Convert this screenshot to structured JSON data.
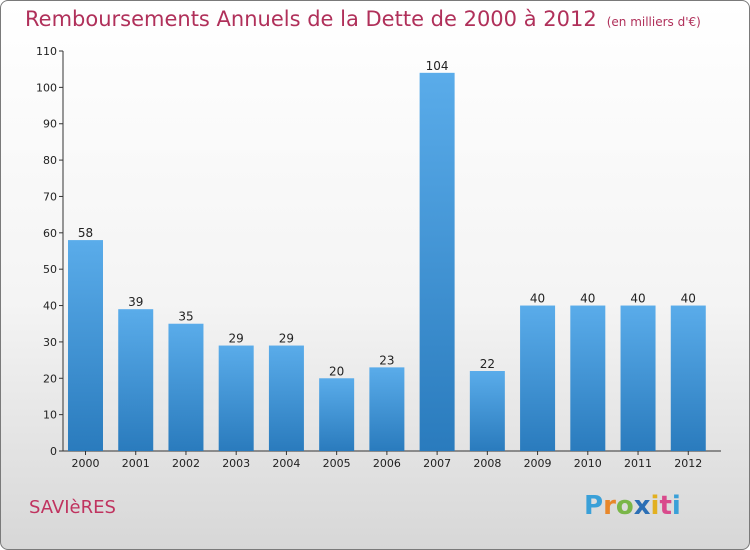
{
  "title": "Remboursements Annuels de la Dette de 2000 à 2012",
  "subtitle": "(en milliers d'€)",
  "location": "SAVIèRES",
  "brand": {
    "letters": [
      "P",
      "r",
      "o",
      "x",
      "i",
      "t",
      "i"
    ],
    "colors": [
      "#3aa0d8",
      "#e8872a",
      "#7ab648",
      "#2c6fb5",
      "#e2b020",
      "#d94a8c",
      "#3aa0d8"
    ]
  },
  "colors": {
    "bar_top": "#5aacea",
    "bar_bottom": "#2a7bbd",
    "title": "#b0305a"
  },
  "chart_data": {
    "type": "bar",
    "title": "Remboursements Annuels de la Dette de 2000 à 2012",
    "subtitle": "(en milliers d'€)",
    "categories": [
      "2000",
      "2001",
      "2002",
      "2003",
      "2004",
      "2005",
      "2006",
      "2007",
      "2008",
      "2009",
      "2010",
      "2011",
      "2012"
    ],
    "values": [
      58,
      39,
      35,
      29,
      29,
      20,
      23,
      104,
      22,
      40,
      40,
      40,
      40
    ],
    "ylim": [
      0,
      110
    ],
    "yticks": [
      0,
      10,
      20,
      30,
      40,
      50,
      60,
      70,
      80,
      90,
      100,
      110
    ],
    "xlabel": "",
    "ylabel": "",
    "grid": false,
    "legend": "none"
  }
}
